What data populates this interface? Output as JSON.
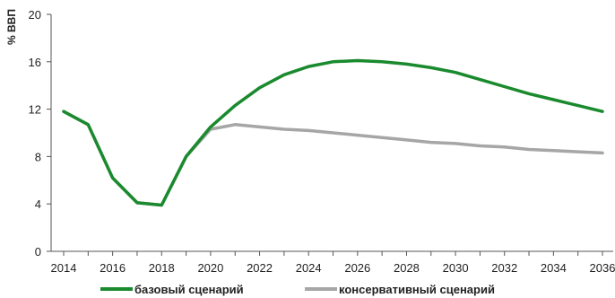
{
  "chart_data": {
    "type": "line",
    "ylabel": "% ВВП",
    "xlabel": "",
    "xlim": [
      2014,
      2036
    ],
    "ylim": [
      0,
      20
    ],
    "x_ticks": [
      "2014",
      "2016",
      "2018",
      "2020",
      "2022",
      "2024",
      "2026",
      "2028",
      "2030",
      "2032",
      "2034",
      "2036"
    ],
    "y_ticks": [
      "0",
      "4",
      "8",
      "12",
      "16",
      "20"
    ],
    "grid": false,
    "legend_position": "bottom",
    "x": [
      2014,
      2015,
      2016,
      2017,
      2018,
      2019,
      2020,
      2021,
      2022,
      2023,
      2024,
      2025,
      2026,
      2027,
      2028,
      2029,
      2030,
      2031,
      2032,
      2033,
      2034,
      2035,
      2036
    ],
    "series": [
      {
        "name": "базовый сценарий",
        "color": "#1a8a2e",
        "values": [
          11.8,
          10.7,
          6.2,
          4.1,
          3.9,
          8.0,
          10.5,
          12.3,
          13.8,
          14.9,
          15.6,
          16.0,
          16.1,
          16.0,
          15.8,
          15.5,
          15.1,
          14.5,
          13.9,
          13.3,
          12.8,
          12.3,
          11.8
        ]
      },
      {
        "name": "консервативный сценарий",
        "color": "#a6a6a6",
        "values": [
          11.8,
          10.7,
          6.2,
          4.1,
          3.9,
          8.0,
          10.3,
          10.7,
          10.5,
          10.3,
          10.2,
          10.0,
          9.8,
          9.6,
          9.4,
          9.2,
          9.1,
          8.9,
          8.8,
          8.6,
          8.5,
          8.4,
          8.3
        ]
      }
    ]
  }
}
